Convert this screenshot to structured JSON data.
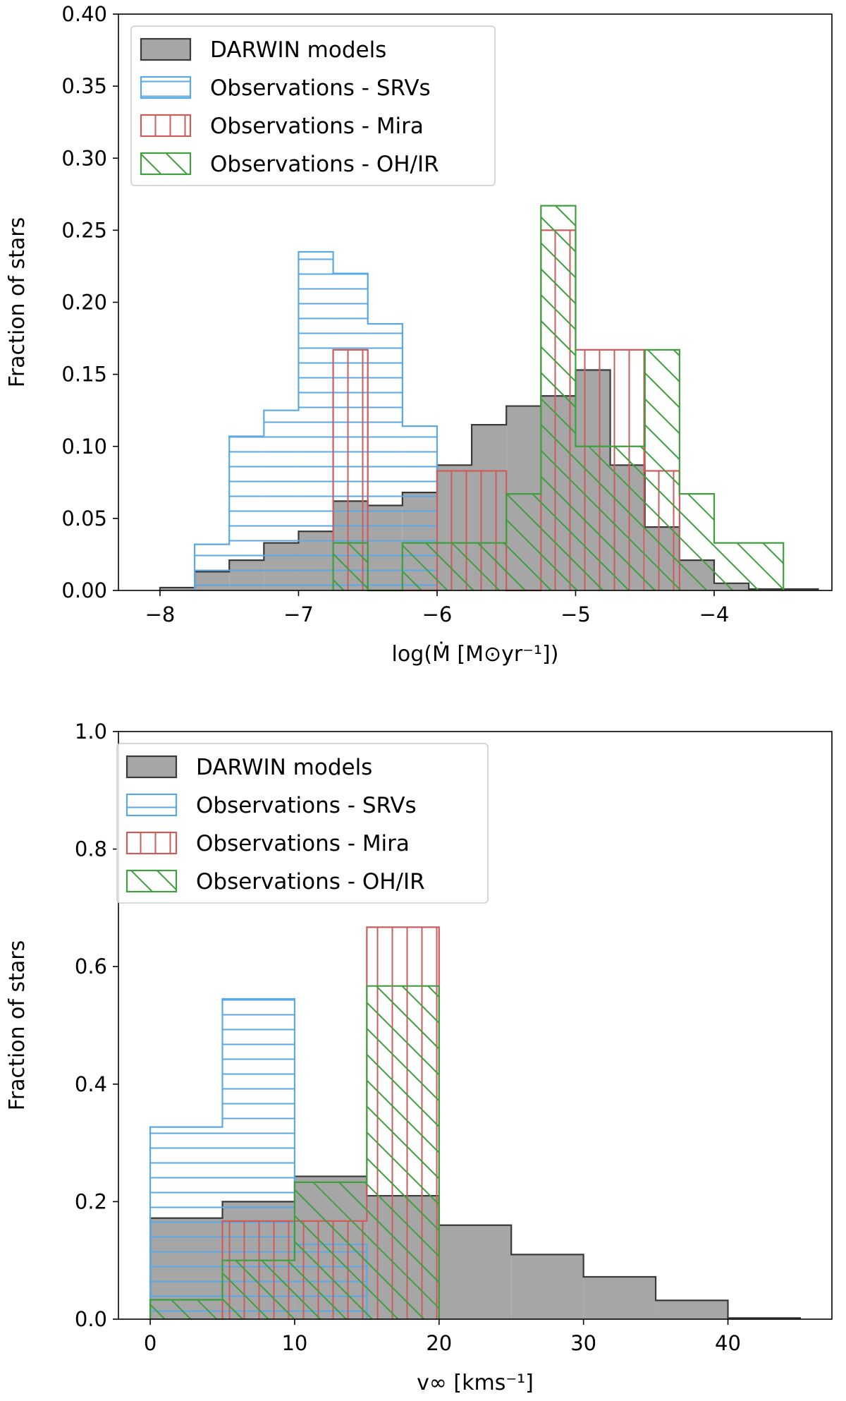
{
  "colors": {
    "models_fill": "#a6a6a6",
    "models_edge": "#3a3a3a",
    "srv": "#5aa9e6",
    "mira": "#cd5c5c",
    "ohir": "#3f9f3f"
  },
  "chart_data": [
    {
      "type": "histogram",
      "xlabel": "log(Ṁ [M⊙yr⁻¹])",
      "ylabel": "Fraction of stars",
      "xlim": [
        -8.3,
        -3.15
      ],
      "ylim": [
        0,
        0.4
      ],
      "xticks": [
        -8,
        -7,
        -6,
        -5,
        -4
      ],
      "xtick_labels": [
        "−8",
        "−7",
        "−6",
        "−5",
        "−4"
      ],
      "yticks": [
        0,
        0.05,
        0.1,
        0.15,
        0.2,
        0.25,
        0.3,
        0.35,
        0.4
      ],
      "ytick_labels": [
        "0.00",
        "0.05",
        "0.10",
        "0.15",
        "0.20",
        "0.25",
        "0.30",
        "0.35",
        "0.40"
      ],
      "legend": {
        "position": "upper-left",
        "entries": [
          "DARWIN models",
          "Observations - SRVs",
          "Observations - Mira",
          "Observations - OH/IR"
        ]
      },
      "series": [
        {
          "name": "DARWIN models",
          "style": "models",
          "edges": [
            -8.0,
            -7.75,
            -7.5,
            -7.25,
            -7.0,
            -6.75,
            -6.5,
            -6.25,
            -6.0,
            -5.75,
            -5.5,
            -5.25,
            -5.0,
            -4.75,
            -4.5,
            -4.25,
            -4.0,
            -3.75,
            -3.5,
            -3.25
          ],
          "values": [
            0.002,
            0.013,
            0.021,
            0.033,
            0.041,
            0.062,
            0.059,
            0.068,
            0.087,
            0.115,
            0.128,
            0.135,
            0.153,
            0.087,
            0.044,
            0.021,
            0.005,
            0.001,
            0.001
          ]
        },
        {
          "name": "Observations - SRVs",
          "style": "srv",
          "edges": [
            -7.75,
            -7.5,
            -7.25,
            -7.0,
            -6.75,
            -6.5,
            -6.25,
            -6.0
          ],
          "values": [
            0.032,
            0.107,
            0.125,
            0.235,
            0.22,
            0.185,
            0.114
          ]
        },
        {
          "name": "Observations - Mira",
          "style": "mira",
          "edges": [
            -6.75,
            -6.5,
            -6.25,
            -6.0,
            -5.5,
            -5.25,
            -5.0,
            -4.5,
            -4.25
          ],
          "values": [
            0.167,
            0.0,
            0.0,
            0.083,
            0.0,
            0.25,
            0.167,
            0.083
          ]
        },
        {
          "name": "Observations - OH/IR",
          "style": "ohir",
          "edges": [
            -6.75,
            -6.5,
            -6.25,
            -5.5,
            -5.25,
            -5.0,
            -4.5,
            -4.25,
            -4.0,
            -3.5
          ],
          "values": [
            0.033,
            0.0,
            0.033,
            0.067,
            0.267,
            0.1,
            0.167,
            0.067,
            0.033
          ]
        }
      ]
    },
    {
      "type": "histogram",
      "xlabel": "v∞ [kms⁻¹]",
      "ylabel": "Fraction of stars",
      "xlim": [
        -2.2,
        47.2
      ],
      "ylim": [
        0,
        1.0
      ],
      "xticks": [
        0,
        10,
        20,
        30,
        40
      ],
      "xtick_labels": [
        "0",
        "10",
        "20",
        "30",
        "40"
      ],
      "yticks": [
        0,
        0.2,
        0.4,
        0.6,
        0.8,
        1.0
      ],
      "ytick_labels": [
        "0.0",
        "0.2",
        "0.4",
        "0.6",
        "0.8",
        "1.0"
      ],
      "legend": {
        "position": "upper-left",
        "entries": [
          "DARWIN models",
          "Observations - SRVs",
          "Observations - Mira",
          "Observations - OH/IR"
        ]
      },
      "series": [
        {
          "name": "DARWIN models",
          "style": "models",
          "edges": [
            0,
            5,
            10,
            15,
            20,
            25,
            30,
            35,
            40,
            45
          ],
          "values": [
            0.172,
            0.2,
            0.243,
            0.21,
            0.16,
            0.11,
            0.072,
            0.032,
            0.002
          ]
        },
        {
          "name": "Observations - SRVs",
          "style": "srv",
          "edges": [
            0,
            5,
            10,
            15
          ],
          "values": [
            0.327,
            0.545,
            0.127
          ]
        },
        {
          "name": "Observations - Mira",
          "style": "mira",
          "edges": [
            5,
            10,
            15,
            20
          ],
          "values": [
            0.167,
            0.167,
            0.667
          ]
        },
        {
          "name": "Observations - OH/IR",
          "style": "ohir",
          "edges": [
            0,
            5,
            10,
            15,
            20
          ],
          "values": [
            0.033,
            0.1,
            0.233,
            0.567
          ]
        }
      ]
    }
  ]
}
